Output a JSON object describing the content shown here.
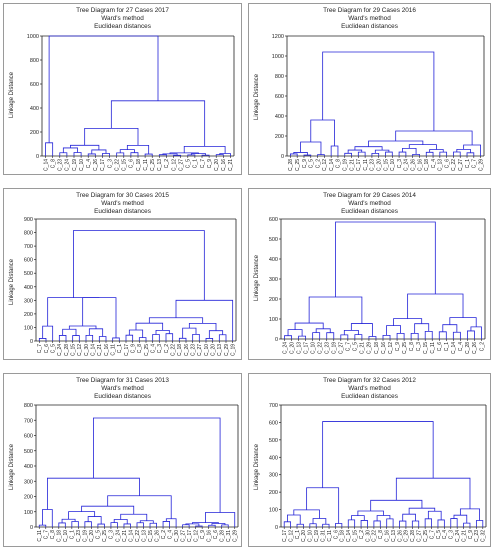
{
  "colors": {
    "line": "#2323d8",
    "axis": "#222222",
    "border": "#9a9a9a"
  },
  "chart_data": [
    {
      "type": "dendrogram",
      "title": "Tree Diagram for 27 Cases 2017",
      "subtitle1": "Ward's method",
      "subtitle2": "Euclidean distances",
      "ylabel": "Linkage Distance",
      "ylim": [
        0,
        1000
      ],
      "yticks": [
        0,
        200,
        400,
        600,
        800,
        1000
      ],
      "leaves": [
        "C_14",
        "C_8",
        "C_23",
        "C_24",
        "C_19",
        "C_10",
        "C_4",
        "C_26",
        "C_17",
        "C_3",
        "C_22",
        "C_15",
        "C_6",
        "C_18",
        "C_11",
        "C_25",
        "C_13",
        "C_2",
        "C_12",
        "C_27",
        "C_5",
        "C_1",
        "C_7",
        "C_9",
        "C_20",
        "C_16",
        "C_21"
      ],
      "groups": [
        {
          "name": "A",
          "leaves": [
            0,
            1
          ],
          "height": 110
        },
        {
          "name": "B",
          "leaves": [
            2,
            3,
            4,
            5,
            6,
            7,
            8,
            9,
            10,
            11,
            12,
            13,
            14,
            15
          ],
          "height": 230
        },
        {
          "name": "C",
          "leaves": [
            16,
            17,
            18,
            19,
            20,
            21,
            22,
            23,
            24,
            25,
            26
          ],
          "height": 80
        },
        {
          "name": "BC",
          "children": [
            "B",
            "C"
          ],
          "height": 460
        },
        {
          "name": "root",
          "children": [
            "A",
            "BC"
          ],
          "height": 1000
        }
      ]
    },
    {
      "type": "dendrogram",
      "title": "Tree Diagram for 29 Cases 2016",
      "subtitle1": "Ward's method",
      "subtitle2": "Euclidean distances",
      "ylabel": "Linkage Distance",
      "ylim": [
        0,
        1200
      ],
      "yticks": [
        0,
        200,
        400,
        600,
        800,
        1000,
        1200
      ],
      "leaves": [
        "C_28",
        "C_25",
        "C_9",
        "C_5",
        "C_2",
        "C_12",
        "C_14",
        "C_8",
        "C_19",
        "C_21",
        "C_17",
        "C_11",
        "C_23",
        "C_20",
        "C_15",
        "C_10",
        "C_3",
        "C_24",
        "C_26",
        "C_16",
        "C_18",
        "C_4",
        "C_13",
        "C_6",
        "C_22",
        "C_27",
        "C_1",
        "C_7",
        "C_29"
      ],
      "groups": [
        {
          "name": "A",
          "leaves": [
            0,
            1,
            2,
            3,
            4,
            5
          ],
          "height": 140
        },
        {
          "name": "B",
          "leaves": [
            6,
            7
          ],
          "height": 100
        },
        {
          "name": "AB",
          "children": [
            "A",
            "B"
          ],
          "height": 360
        },
        {
          "name": "C",
          "leaves": [
            8,
            9,
            10,
            11,
            12,
            13,
            14,
            15,
            16,
            17,
            18,
            19,
            20,
            21,
            22,
            23,
            24,
            25,
            26,
            27,
            28
          ],
          "height": 250
        },
        {
          "name": "root",
          "children": [
            "AB",
            "C"
          ],
          "height": 1040
        }
      ]
    },
    {
      "type": "dendrogram",
      "title": "Tree Diagram for 30 Cases 2015",
      "subtitle1": "Ward's method",
      "subtitle2": "Euclidean distances",
      "ylabel": "Linkage Distance",
      "ylim": [
        0,
        900
      ],
      "yticks": [
        0,
        100,
        200,
        300,
        400,
        500,
        600,
        700,
        800,
        900
      ],
      "leaves": [
        "C_7",
        "C_6",
        "C_5",
        "C_24",
        "C_28",
        "C_15",
        "C_12",
        "C_30",
        "C_14",
        "C_21",
        "C_16",
        "C_11",
        "C_1",
        "C_17",
        "C_9",
        "C_8",
        "C_25",
        "C_4",
        "C_3",
        "C_2",
        "C_22",
        "C_18",
        "C_26",
        "C_23",
        "C_27",
        "C_10",
        "C_20",
        "C_13",
        "C_29",
        "C_19"
      ],
      "groups": [
        {
          "name": "A",
          "leaves": [
            0,
            1,
            2
          ],
          "height": 110
        },
        {
          "name": "B",
          "leaves": [
            3,
            4,
            5,
            6,
            7,
            8,
            9,
            10,
            11,
            12
          ],
          "height": 320
        },
        {
          "name": "AB",
          "children": [
            "A",
            "B"
          ],
          "height": 320
        },
        {
          "name": "C",
          "leaves": [
            13,
            14,
            15,
            16,
            17,
            18,
            19,
            20,
            21,
            22,
            23,
            24,
            25,
            26,
            27,
            28,
            29
          ],
          "height": 300
        },
        {
          "name": "root",
          "children": [
            "AB",
            "C"
          ],
          "height": 815
        }
      ]
    },
    {
      "type": "dendrogram",
      "title": "Tree Diagram for 29 Cases 2014",
      "subtitle1": "Ward's method",
      "subtitle2": "Euclidean distances",
      "ylabel": "Linkage Distance",
      "ylim": [
        0,
        600
      ],
      "yticks": [
        0,
        100,
        200,
        300,
        400,
        500,
        600
      ],
      "leaves": [
        "C_24",
        "C_20",
        "C_13",
        "C_17",
        "C_10",
        "C_22",
        "C_23",
        "C_19",
        "C_27",
        "C_7",
        "C_5",
        "C_21",
        "C_29",
        "C_18",
        "C_16",
        "C_12",
        "C_9",
        "C_25",
        "C_8",
        "C_3",
        "C_15",
        "C_11",
        "C_6",
        "C_1",
        "C_14",
        "C_4",
        "C_28",
        "C_26",
        "C_2"
      ],
      "groups": [
        {
          "name": "A",
          "leaves": [
            0,
            1,
            2,
            3,
            4,
            5,
            6,
            7,
            8,
            9,
            10,
            11,
            12,
            13
          ],
          "height": 210
        },
        {
          "name": "B",
          "leaves": [
            14,
            15,
            16,
            17,
            18,
            19,
            20,
            21,
            22,
            23,
            24,
            25,
            26,
            27,
            28
          ],
          "height": 225
        },
        {
          "name": "root",
          "children": [
            "A",
            "B"
          ],
          "height": 585
        }
      ]
    },
    {
      "type": "dendrogram",
      "title": "Tree Diagram for 31 Cases 2013",
      "subtitle1": "Ward's method",
      "subtitle2": "Euclidean distances",
      "ylabel": "Linkage Distance",
      "ylim": [
        0,
        800
      ],
      "yticks": [
        0,
        100,
        200,
        300,
        400,
        500,
        600,
        700,
        800
      ],
      "leaves": [
        "C_11",
        "C_7",
        "C_8",
        "C_18",
        "C_10",
        "C_1",
        "C_23",
        "C_19",
        "C_20",
        "C_5",
        "C_25",
        "C_3",
        "C_24",
        "C_21",
        "C_14",
        "C_22",
        "C_13",
        "C_15",
        "C_26",
        "C_2",
        "C_4",
        "C_30",
        "C_27",
        "C_17",
        "C_12",
        "C_9",
        "C_16",
        "C_6",
        "C_28",
        "C_31",
        "C_29"
      ],
      "groups": [
        {
          "name": "A",
          "leaves": [
            0,
            1,
            2
          ],
          "height": 115
        },
        {
          "name": "B",
          "leaves": [
            3,
            4,
            5,
            6,
            7,
            8,
            9,
            10,
            11,
            12,
            13,
            14,
            15,
            16,
            17,
            18,
            19,
            20,
            21
          ],
          "height": 205
        },
        {
          "name": "AB",
          "children": [
            "A",
            "B"
          ],
          "height": 320
        },
        {
          "name": "C",
          "leaves": [
            22,
            23,
            24,
            25,
            26,
            27,
            28,
            29,
            30
          ],
          "height": 95
        },
        {
          "name": "root",
          "children": [
            "AB",
            "C"
          ],
          "height": 715
        }
      ]
    },
    {
      "type": "dendrogram",
      "title": "Tree Diagram for 32 Cases 2012",
      "subtitle1": "Ward's method",
      "subtitle2": "Euclidean distances",
      "ylabel": "Linkage Distance",
      "ylim": [
        0,
        700
      ],
      "yticks": [
        0,
        100,
        200,
        300,
        400,
        500,
        600,
        700
      ],
      "leaves": [
        "C_17",
        "C_12",
        "C_1",
        "C_20",
        "C_10",
        "C_19",
        "C_31",
        "C_11",
        "C_6",
        "C_18",
        "C_14",
        "C_15",
        "C_2",
        "C_30",
        "C_22",
        "C_8",
        "C_16",
        "C_13",
        "C_26",
        "C_29",
        "C_28",
        "C_27",
        "C_25",
        "C_7",
        "C_5",
        "C_4",
        "C_3",
        "C_24",
        "C_21",
        "C_9",
        "C_23",
        "C_32"
      ],
      "groups": [
        {
          "name": "A",
          "leaves": [
            0,
            1,
            2,
            3,
            4,
            5,
            6,
            7,
            8,
            9
          ],
          "height": 225
        },
        {
          "name": "B",
          "leaves": [
            10,
            11,
            12,
            13,
            14,
            15,
            16,
            17,
            18,
            19,
            20,
            21,
            22,
            23,
            24,
            25,
            26,
            27,
            28,
            29,
            30,
            31
          ],
          "height": 280
        },
        {
          "name": "root",
          "children": [
            "A",
            "B"
          ],
          "height": 605
        }
      ]
    }
  ]
}
